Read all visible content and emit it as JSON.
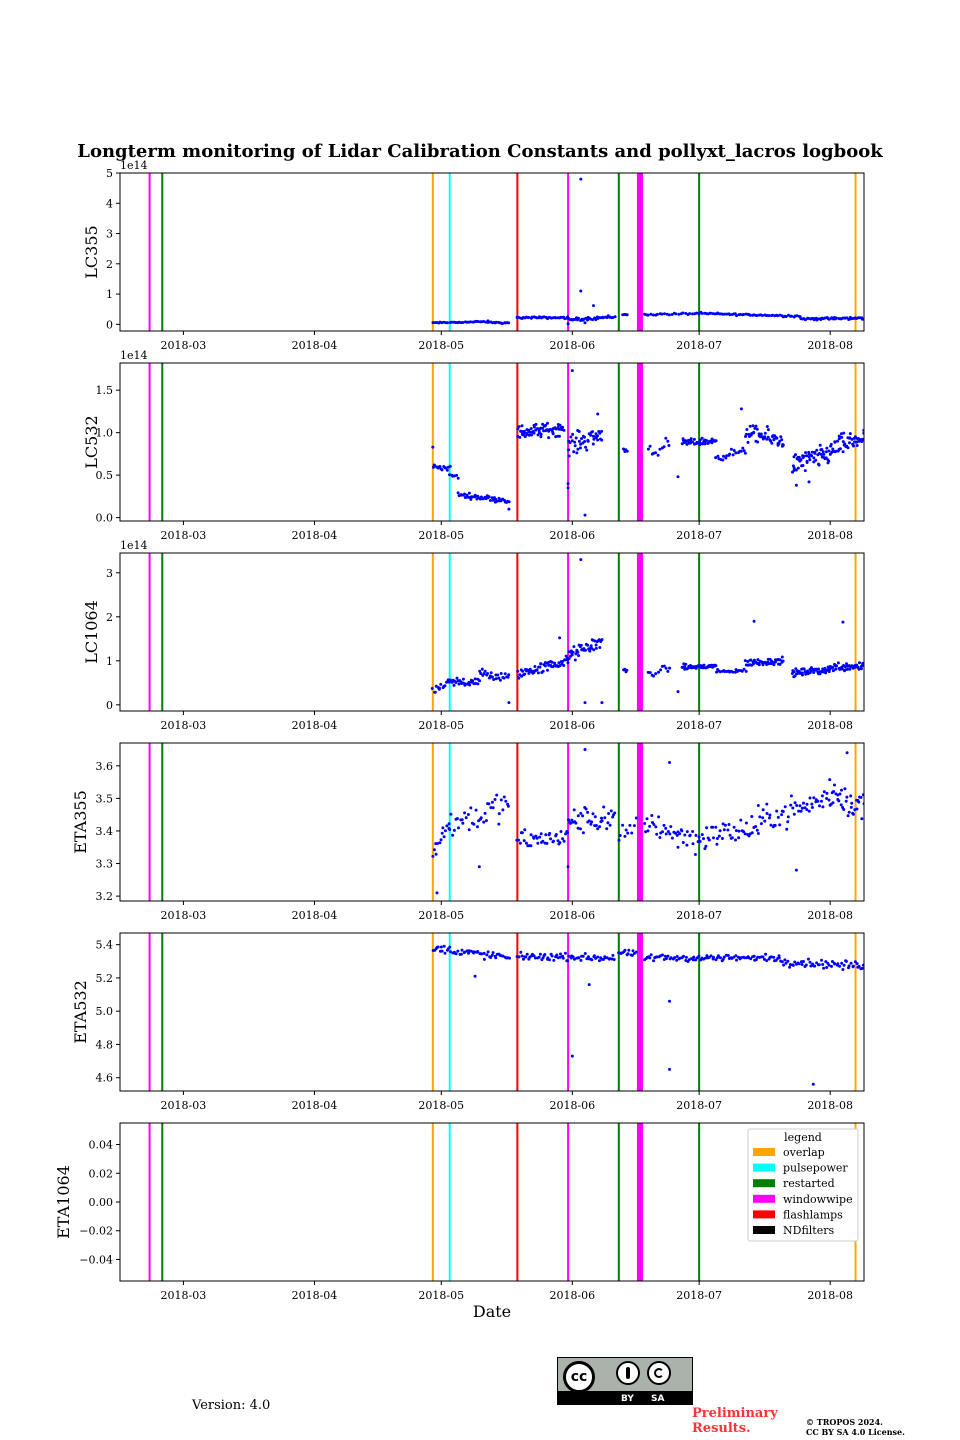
{
  "figure": {
    "title": "Longterm monitoring of Lidar Calibration Constants and pollyxt_lacros logbook",
    "version": "Version: 4.0",
    "preliminary_line1": "Preliminary",
    "preliminary_line2": "Results.",
    "copyright_line1": "© TROPOS 2024.",
    "copyright_line2": "CC BY SA 4.0 License.",
    "license_by": "BY",
    "license_sa": "SA",
    "license_cc": "cc"
  },
  "chart_data": {
    "type": "scatter",
    "x_axis": {
      "type": "date",
      "range": [
        "2018-02-14",
        "2018-08-09"
      ],
      "ticks": [
        "2018-03-01",
        "2018-04-01",
        "2018-05-01",
        "2018-06-01",
        "2018-07-01",
        "2018-08-01"
      ],
      "tick_labels": [
        "2018-03",
        "2018-04",
        "2018-05",
        "2018-06",
        "2018-07",
        "2018-08"
      ],
      "xlabel": "Date"
    },
    "point_color": "#0000ff",
    "events": [
      {
        "date": "2018-02-21",
        "type": "windowwipe"
      },
      {
        "date": "2018-02-24",
        "type": "restarted"
      },
      {
        "date": "2018-04-29",
        "type": "overlap"
      },
      {
        "date": "2018-05-03",
        "type": "pulsepower"
      },
      {
        "date": "2018-05-19",
        "type": "flashlamps"
      },
      {
        "date": "2018-05-31",
        "type": "windowwipe"
      },
      {
        "date": "2018-06-12",
        "type": "restarted"
      },
      {
        "date": "2018-06-17",
        "type": "windowwipe",
        "thick": true
      },
      {
        "date": "2018-07-01",
        "type": "restarted"
      },
      {
        "date": "2018-08-07",
        "type": "overlap"
      }
    ],
    "legend": {
      "title": "legend",
      "placement": "upper right (ETA1064 panel)",
      "entries": [
        {
          "label": "overlap",
          "color": "#ffa500"
        },
        {
          "label": "pulsepower",
          "color": "#00ffff"
        },
        {
          "label": "restarted",
          "color": "#008000"
        },
        {
          "label": "windowwipe",
          "color": "#ff00ff"
        },
        {
          "label": "flashlamps",
          "color": "#ff0000"
        },
        {
          "label": "NDfilters",
          "color": "#000000"
        }
      ]
    },
    "panels": [
      {
        "ylabel": "LC355",
        "offset": "1e14",
        "ylim": [
          -0.22,
          5.0
        ],
        "yticks": [
          0,
          1,
          2,
          3,
          4,
          5
        ],
        "ytick_labels": [
          "0",
          "1",
          "2",
          "3",
          "4",
          "5"
        ],
        "segments": [
          {
            "start": "2018-04-29",
            "end": "2018-05-12",
            "from": 0.05,
            "to": 0.09,
            "noise": 0.02,
            "n": 30
          },
          {
            "start": "2018-05-12",
            "end": "2018-05-17",
            "from": 0.07,
            "to": 0.04,
            "noise": 0.02,
            "n": 15
          },
          {
            "start": "2018-05-19",
            "end": "2018-05-31",
            "from": 0.22,
            "to": 0.22,
            "noise": 0.03,
            "n": 35
          },
          {
            "start": "2018-05-31",
            "end": "2018-06-11",
            "from": 0.15,
            "to": 0.25,
            "noise": 0.05,
            "n": 35
          },
          {
            "start": "2018-06-13",
            "end": "2018-06-14",
            "from": 0.32,
            "to": 0.32,
            "noise": 0.01,
            "n": 5
          },
          {
            "start": "2018-06-18",
            "end": "2018-07-01",
            "from": 0.32,
            "to": 0.36,
            "noise": 0.03,
            "n": 25
          },
          {
            "start": "2018-07-01",
            "end": "2018-07-25",
            "from": 0.36,
            "to": 0.27,
            "noise": 0.03,
            "n": 60
          },
          {
            "start": "2018-07-25",
            "end": "2018-08-09",
            "from": 0.18,
            "to": 0.2,
            "noise": 0.04,
            "n": 50
          }
        ],
        "outliers": [
          [
            "2018-06-03",
            4.8
          ],
          [
            "2018-06-03",
            1.1
          ],
          [
            "2018-06-06",
            0.62
          ],
          [
            "2018-06-04",
            0.05
          ],
          [
            "2018-05-31",
            0.02
          ]
        ]
      },
      {
        "ylabel": "LC532",
        "offset": "1e14",
        "ylim": [
          -0.04,
          1.82
        ],
        "yticks": [
          0.0,
          0.5,
          1.0,
          1.5
        ],
        "ytick_labels": [
          "0.0",
          "0.5",
          "1.0",
          "1.5"
        ],
        "segments": [
          {
            "start": "2018-04-29",
            "end": "2018-05-03",
            "from": 0.6,
            "to": 0.58,
            "noise": 0.03,
            "n": 15
          },
          {
            "start": "2018-05-03",
            "end": "2018-05-05",
            "from": 0.5,
            "to": 0.48,
            "noise": 0.02,
            "n": 6
          },
          {
            "start": "2018-05-05",
            "end": "2018-05-17",
            "from": 0.27,
            "to": 0.2,
            "noise": 0.03,
            "n": 45
          },
          {
            "start": "2018-05-19",
            "end": "2018-05-30",
            "from": 1.0,
            "to": 1.05,
            "noise": 0.08,
            "n": 70
          },
          {
            "start": "2018-05-31",
            "end": "2018-06-08",
            "from": 0.85,
            "to": 0.98,
            "noise": 0.12,
            "n": 45
          },
          {
            "start": "2018-06-13",
            "end": "2018-06-14",
            "from": 0.8,
            "to": 0.8,
            "noise": 0.02,
            "n": 4
          },
          {
            "start": "2018-06-19",
            "end": "2018-06-24",
            "from": 0.78,
            "to": 0.85,
            "noise": 0.1,
            "n": 12
          },
          {
            "start": "2018-06-27",
            "end": "2018-07-05",
            "from": 0.88,
            "to": 0.9,
            "noise": 0.04,
            "n": 45
          },
          {
            "start": "2018-07-05",
            "end": "2018-07-12",
            "from": 0.72,
            "to": 0.78,
            "noise": 0.05,
            "n": 20
          },
          {
            "start": "2018-07-12",
            "end": "2018-07-21",
            "from": 1.0,
            "to": 0.9,
            "noise": 0.1,
            "n": 50
          },
          {
            "start": "2018-07-23",
            "end": "2018-08-01",
            "from": 0.62,
            "to": 0.75,
            "noise": 0.12,
            "n": 60
          },
          {
            "start": "2018-08-01",
            "end": "2018-08-09",
            "from": 0.8,
            "to": 0.95,
            "noise": 0.12,
            "n": 50
          }
        ],
        "outliers": [
          [
            "2018-06-01",
            1.73
          ],
          [
            "2018-06-04",
            0.03
          ],
          [
            "2018-05-31",
            0.4
          ],
          [
            "2018-05-31",
            0.35
          ],
          [
            "2018-06-07",
            1.22
          ],
          [
            "2018-05-17",
            0.1
          ],
          [
            "2018-04-29",
            0.83
          ],
          [
            "2018-06-26",
            0.48
          ],
          [
            "2018-07-11",
            1.28
          ],
          [
            "2018-07-24",
            0.38
          ],
          [
            "2018-07-27",
            0.42
          ]
        ]
      },
      {
        "ylabel": "LC1064",
        "offset": "1e14",
        "ylim": [
          -0.14,
          3.45
        ],
        "yticks": [
          0,
          1,
          2,
          3
        ],
        "ytick_labels": [
          "0",
          "1",
          "2",
          "3"
        ],
        "segments": [
          {
            "start": "2018-04-29",
            "end": "2018-05-03",
            "from": 0.3,
            "to": 0.5,
            "noise": 0.08,
            "n": 15
          },
          {
            "start": "2018-05-03",
            "end": "2018-05-10",
            "from": 0.5,
            "to": 0.55,
            "noise": 0.12,
            "n": 30
          },
          {
            "start": "2018-05-10",
            "end": "2018-05-17",
            "from": 0.7,
            "to": 0.6,
            "noise": 0.12,
            "n": 25
          },
          {
            "start": "2018-05-19",
            "end": "2018-05-31",
            "from": 0.7,
            "to": 1.0,
            "noise": 0.12,
            "n": 60
          },
          {
            "start": "2018-05-31",
            "end": "2018-06-08",
            "from": 1.1,
            "to": 1.45,
            "noise": 0.15,
            "n": 45
          },
          {
            "start": "2018-06-13",
            "end": "2018-06-14",
            "from": 0.8,
            "to": 0.75,
            "noise": 0.05,
            "n": 4
          },
          {
            "start": "2018-06-19",
            "end": "2018-06-24",
            "from": 0.7,
            "to": 0.85,
            "noise": 0.1,
            "n": 12
          },
          {
            "start": "2018-06-27",
            "end": "2018-07-05",
            "from": 0.85,
            "to": 0.88,
            "noise": 0.06,
            "n": 45
          },
          {
            "start": "2018-07-05",
            "end": "2018-07-12",
            "from": 0.75,
            "to": 0.78,
            "noise": 0.04,
            "n": 20
          },
          {
            "start": "2018-07-12",
            "end": "2018-07-21",
            "from": 0.95,
            "to": 1.0,
            "noise": 0.08,
            "n": 50
          },
          {
            "start": "2018-07-23",
            "end": "2018-08-01",
            "from": 0.72,
            "to": 0.8,
            "noise": 0.08,
            "n": 55
          },
          {
            "start": "2018-08-01",
            "end": "2018-08-09",
            "from": 0.85,
            "to": 0.9,
            "noise": 0.1,
            "n": 45
          }
        ],
        "outliers": [
          [
            "2018-06-03",
            3.3
          ],
          [
            "2018-05-29",
            1.52
          ],
          [
            "2018-06-04",
            0.05
          ],
          [
            "2018-07-14",
            1.9
          ],
          [
            "2018-08-04",
            1.88
          ],
          [
            "2018-05-17",
            0.05
          ],
          [
            "2018-06-08",
            0.05
          ],
          [
            "2018-06-26",
            0.3
          ]
        ]
      },
      {
        "ylabel": "ETA355",
        "offset": "",
        "ylim": [
          3.185,
          3.67
        ],
        "yticks": [
          3.2,
          3.3,
          3.4,
          3.5,
          3.6
        ],
        "ytick_labels": [
          "3.2",
          "3.3",
          "3.4",
          "3.5",
          "3.6"
        ],
        "segments": [
          {
            "start": "2018-04-29",
            "end": "2018-05-03",
            "from": 3.33,
            "to": 3.43,
            "noise": 0.04,
            "n": 14
          },
          {
            "start": "2018-05-03",
            "end": "2018-05-17",
            "from": 3.42,
            "to": 3.48,
            "noise": 0.045,
            "n": 40
          },
          {
            "start": "2018-05-19",
            "end": "2018-05-31",
            "from": 3.37,
            "to": 3.38,
            "noise": 0.03,
            "n": 40
          },
          {
            "start": "2018-05-31",
            "end": "2018-06-11",
            "from": 3.43,
            "to": 3.44,
            "noise": 0.04,
            "n": 40
          },
          {
            "start": "2018-06-12",
            "end": "2018-06-16",
            "from": 3.36,
            "to": 3.42,
            "noise": 0.04,
            "n": 10
          },
          {
            "start": "2018-06-18",
            "end": "2018-07-01",
            "from": 3.43,
            "to": 3.37,
            "noise": 0.04,
            "n": 40
          },
          {
            "start": "2018-07-01",
            "end": "2018-07-15",
            "from": 3.38,
            "to": 3.41,
            "noise": 0.04,
            "n": 45
          },
          {
            "start": "2018-07-15",
            "end": "2018-08-01",
            "from": 3.43,
            "to": 3.5,
            "noise": 0.04,
            "n": 55
          },
          {
            "start": "2018-08-01",
            "end": "2018-08-09",
            "from": 3.52,
            "to": 3.47,
            "noise": 0.05,
            "n": 35
          }
        ],
        "outliers": [
          [
            "2018-04-30",
            3.21
          ],
          [
            "2018-05-10",
            3.29
          ],
          [
            "2018-06-04",
            3.65
          ],
          [
            "2018-06-24",
            3.61
          ],
          [
            "2018-07-24",
            3.28
          ],
          [
            "2018-08-05",
            3.64
          ],
          [
            "2018-05-31",
            3.29
          ],
          [
            "2018-06-26",
            3.35
          ]
        ]
      },
      {
        "ylabel": "ETA532",
        "offset": "",
        "ylim": [
          4.52,
          5.47
        ],
        "yticks": [
          4.6,
          4.8,
          5.0,
          5.2,
          5.4
        ],
        "ytick_labels": [
          "4.6",
          "4.8",
          "5.0",
          "5.2",
          "5.4"
        ],
        "segments": [
          {
            "start": "2018-04-29",
            "end": "2018-05-17",
            "from": 5.38,
            "to": 5.32,
            "noise": 0.025,
            "n": 55
          },
          {
            "start": "2018-05-19",
            "end": "2018-06-11",
            "from": 5.33,
            "to": 5.32,
            "noise": 0.02,
            "n": 70
          },
          {
            "start": "2018-06-12",
            "end": "2018-06-16",
            "from": 5.35,
            "to": 5.34,
            "noise": 0.02,
            "n": 14
          },
          {
            "start": "2018-06-18",
            "end": "2018-07-20",
            "from": 5.32,
            "to": 5.32,
            "noise": 0.02,
            "n": 90
          },
          {
            "start": "2018-07-20",
            "end": "2018-08-09",
            "from": 5.3,
            "to": 5.27,
            "noise": 0.025,
            "n": 60
          }
        ],
        "outliers": [
          [
            "2018-06-01",
            4.73
          ],
          [
            "2018-06-24",
            5.06
          ],
          [
            "2018-06-24",
            4.65
          ],
          [
            "2018-07-28",
            4.56
          ],
          [
            "2018-06-05",
            5.16
          ],
          [
            "2018-05-09",
            5.21
          ]
        ]
      },
      {
        "ylabel": "ETA1064",
        "offset": "",
        "ylim": [
          -0.055,
          0.055
        ],
        "yticks": [
          -0.04,
          -0.02,
          0.0,
          0.02,
          0.04
        ],
        "ytick_labels": [
          "−0.04",
          "−0.02",
          "0.00",
          "0.02",
          "0.04"
        ],
        "segments": [],
        "outliers": []
      }
    ]
  }
}
